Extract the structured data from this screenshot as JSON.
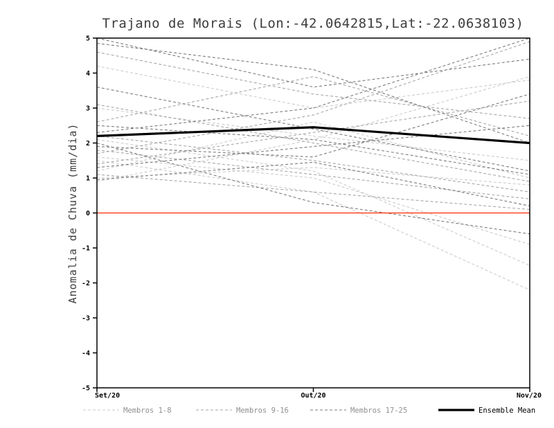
{
  "chart_data": {
    "type": "line",
    "title": "Trajano de Morais (Lon:-42.0642815,Lat:-22.0638103)",
    "ylabel": "Anomalia de Chuva (mm/dia)",
    "x_categories": [
      "Set/20",
      "Out/20",
      "Nov/20"
    ],
    "ylim": [
      -5,
      5
    ],
    "ytick_step": 1,
    "yticks": [
      -5,
      -4,
      -3,
      -2,
      -1,
      0,
      1,
      2,
      3,
      4,
      5
    ],
    "grid": false,
    "zero_line": {
      "color": "#ff2a00",
      "values": [
        0,
        0,
        0
      ]
    },
    "groups": [
      {
        "name": "Membros 1-8",
        "color": "#cbcbcb",
        "dashed": true,
        "series": [
          [
            1.0,
            1.3,
            0.8
          ],
          [
            1.5,
            0.6,
            -2.2
          ],
          [
            2.1,
            1.2,
            -1.5
          ],
          [
            0.9,
            2.1,
            3.9
          ],
          [
            1.6,
            1.0,
            -0.9
          ],
          [
            3.0,
            2.2,
            1.5
          ],
          [
            1.2,
            2.6,
            1.0
          ],
          [
            4.2,
            3.0,
            3.8
          ]
        ]
      },
      {
        "name": "Membros 9-16",
        "color": "#a6a6a6",
        "dashed": true,
        "series": [
          [
            2.2,
            1.5,
            0.6
          ],
          [
            1.4,
            2.3,
            3.2
          ],
          [
            3.1,
            2.0,
            0.9
          ],
          [
            1.8,
            1.1,
            0.4
          ],
          [
            2.6,
            3.9,
            2.2
          ],
          [
            1.1,
            0.6,
            0.1
          ],
          [
            4.6,
            3.4,
            2.7
          ],
          [
            1.7,
            2.8,
            4.9
          ]
        ]
      },
      {
        "name": "Membros 17-25",
        "color": "#7b7b7b",
        "dashed": true,
        "series": [
          [
            4.85,
            4.1,
            2.0
          ],
          [
            2.3,
            3.0,
            5.0
          ],
          [
            3.6,
            2.4,
            1.2
          ],
          [
            1.9,
            1.6,
            3.4
          ],
          [
            2.0,
            0.3,
            -0.6
          ],
          [
            1.3,
            1.9,
            2.5
          ],
          [
            5.0,
            3.6,
            4.4
          ],
          [
            0.95,
            1.45,
            0.2
          ],
          [
            2.5,
            2.1,
            1.1
          ]
        ]
      }
    ],
    "mean": {
      "name": "Ensemble Mean",
      "color": "#000000",
      "values": [
        2.2,
        2.45,
        2.0
      ]
    },
    "legend": [
      {
        "label": "Membros 1-8",
        "color": "#cbcbcb",
        "text_color": "#8f8f8f",
        "style": "dashed"
      },
      {
        "label": "Membros 9-16",
        "color": "#a6a6a6",
        "text_color": "#8f8f8f",
        "style": "dashed"
      },
      {
        "label": "Membros 17-25",
        "color": "#7b7b7b",
        "text_color": "#8f8f8f",
        "style": "dashed"
      },
      {
        "label": "Ensemble Mean",
        "color": "#000000",
        "text_color": "#000000",
        "style": "solid"
      }
    ],
    "legend_position": "bottom"
  }
}
